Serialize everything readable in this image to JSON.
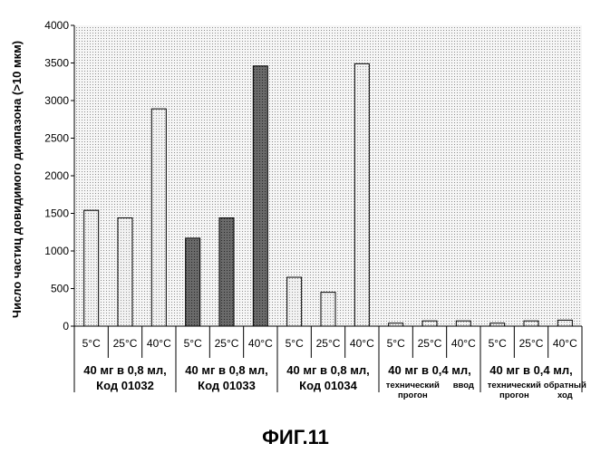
{
  "chart_data": {
    "type": "bar",
    "ylabel": "Число частиц довидимого диапазона (>10 мкм)",
    "ylim": [
      0,
      4000
    ],
    "yticks": [
      0,
      500,
      1000,
      1500,
      2000,
      2500,
      3000,
      3500,
      4000
    ],
    "grid": "dotted background",
    "categories": [
      "5°C",
      "25°C",
      "40°C",
      "5°C",
      "25°C",
      "40°C",
      "5°C",
      "25°C",
      "40°C",
      "5°C",
      "25°C",
      "40°C",
      "5°C",
      "25°C",
      "40°C"
    ],
    "values": [
      1540,
      1440,
      2890,
      1170,
      1440,
      3460,
      650,
      450,
      3490,
      40,
      70,
      70,
      40,
      70,
      80
    ],
    "bar_fill": [
      "light",
      "light",
      "light",
      "dark",
      "dark",
      "dark",
      "light",
      "light",
      "light",
      "light",
      "light",
      "light",
      "light",
      "light",
      "light"
    ],
    "groups": [
      {
        "lines": [
          "40 мг в 0,8 мл,",
          "Код 01032"
        ]
      },
      {
        "lines": [
          "40 мг в 0,8 мл,",
          "Код 01033"
        ]
      },
      {
        "lines": [
          "40 мг в 0,8 мл,",
          "Код 01034"
        ]
      },
      {
        "title": "40 мг в 0,4 мл,",
        "sub_left": [
          "технический",
          "прогон"
        ],
        "sub_right": [
          "ввод"
        ]
      },
      {
        "title": "40 мг в 0,4 мл,",
        "sub_left": [
          "технический",
          "прогон"
        ],
        "sub_right": [
          "обратный",
          "ход"
        ]
      }
    ]
  },
  "caption": "ФИГ.11",
  "colors": {
    "plot_bg": "#f4f4f4",
    "dots": "#9a9a9a",
    "bar_light": "#eeeeee",
    "bar_dark": "#707070"
  }
}
